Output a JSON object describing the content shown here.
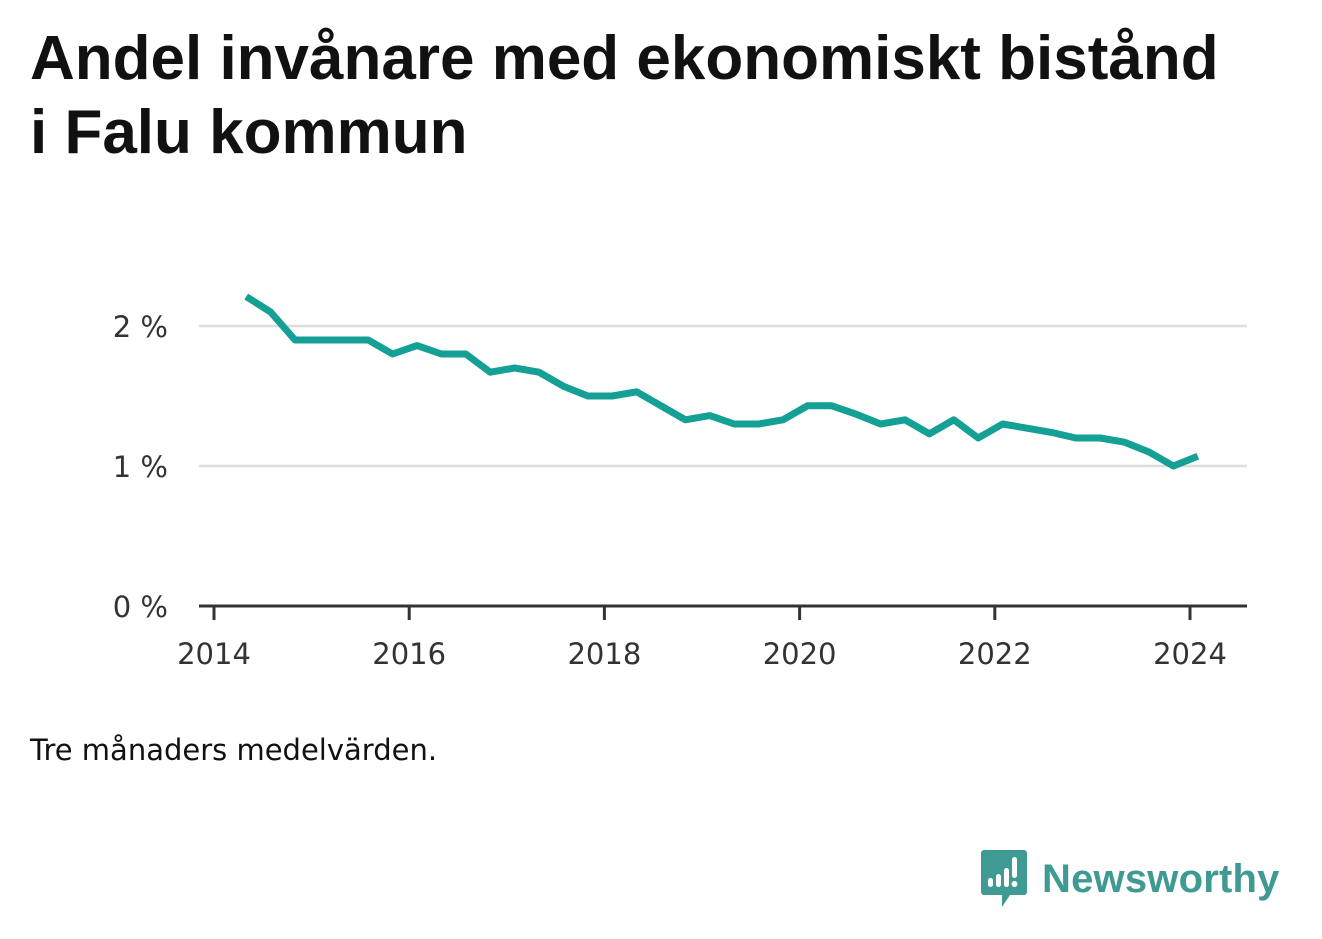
{
  "chart_data": {
    "type": "line",
    "title": "Andel invånare med ekonomiskt bistånd i Falu kommun",
    "note": "Tre månaders medelvärden.",
    "y_ticks": [
      {
        "value": 0,
        "label": "0 %"
      },
      {
        "value": 1,
        "label": "1 %"
      },
      {
        "value": 2,
        "label": "2 %"
      }
    ],
    "x_ticks": [
      {
        "value": 2014,
        "label": "2014"
      },
      {
        "value": 2016,
        "label": "2016"
      },
      {
        "value": 2018,
        "label": "2018"
      },
      {
        "value": 2020,
        "label": "2020"
      },
      {
        "value": 2022,
        "label": "2022"
      },
      {
        "value": 2024,
        "label": "2024"
      }
    ],
    "xlim": [
      2014,
      2024.5
    ],
    "ylim": [
      0,
      2.3
    ],
    "grid": true,
    "series": [
      {
        "color": "#14a095",
        "x": [
          2014.33,
          2014.58,
          2014.83,
          2015.08,
          2015.33,
          2015.58,
          2015.83,
          2016.08,
          2016.33,
          2016.58,
          2016.83,
          2017.08,
          2017.33,
          2017.58,
          2017.83,
          2018.08,
          2018.33,
          2018.58,
          2018.83,
          2019.08,
          2019.33,
          2019.58,
          2019.83,
          2020.08,
          2020.33,
          2020.58,
          2020.83,
          2021.08,
          2021.33,
          2021.58,
          2021.83,
          2022.08,
          2022.33,
          2022.58,
          2022.83,
          2023.08,
          2023.33,
          2023.58,
          2023.83,
          2024.08
        ],
        "y": [
          2.21,
          2.1,
          1.9,
          1.9,
          1.9,
          1.9,
          1.8,
          1.86,
          1.8,
          1.8,
          1.67,
          1.7,
          1.67,
          1.57,
          1.5,
          1.5,
          1.53,
          1.43,
          1.33,
          1.36,
          1.3,
          1.3,
          1.33,
          1.43,
          1.43,
          1.37,
          1.3,
          1.33,
          1.23,
          1.33,
          1.2,
          1.3,
          1.27,
          1.24,
          1.2,
          1.2,
          1.17,
          1.1,
          1.0,
          1.07
        ]
      }
    ]
  },
  "brand": {
    "name": "Newsworthy",
    "icon": "newsworthy-logo-icon",
    "color": "#3e9a92"
  }
}
